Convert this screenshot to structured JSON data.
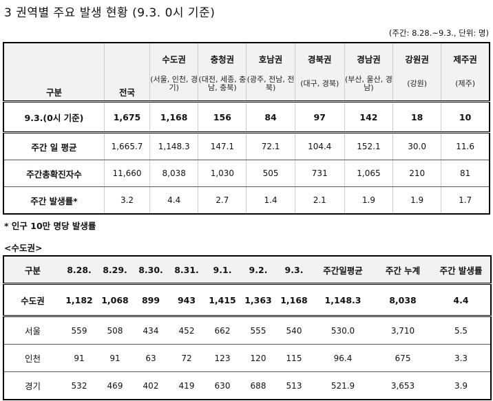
{
  "title": "3 권역별 주요 발생 현황 (9.3. 0시 기준)",
  "unit_note": "(주간: 8.28.~9.3., 단위: 명)",
  "table1": {
    "corner": "구분",
    "national": "전국",
    "regions": [
      {
        "name": "수도권",
        "sub": "(서울, 인천, 경기)"
      },
      {
        "name": "충청권",
        "sub": "(대전, 세종, 충남, 충북)"
      },
      {
        "name": "호남권",
        "sub": "(광주, 전남, 전북)"
      },
      {
        "name": "경북권",
        "sub": "(대구, 경북)"
      },
      {
        "name": "경남권",
        "sub": "(부산, 울산, 경남)"
      },
      {
        "name": "강원권",
        "sub": "(강원)"
      },
      {
        "name": "제주권",
        "sub": "(제주)"
      }
    ],
    "rows": [
      {
        "label": "9.3.(0시 기준)",
        "values": [
          "1,675",
          "1,168",
          "156",
          "84",
          "97",
          "142",
          "18",
          "10"
        ]
      },
      {
        "label": "주간 일 평균",
        "values": [
          "1,665.7",
          "1,148.3",
          "147.1",
          "72.1",
          "104.4",
          "152.1",
          "30.0",
          "11.6"
        ]
      },
      {
        "label": "주간총확진자수",
        "values": [
          "11,660",
          "8,038",
          "1,030",
          "505",
          "731",
          "1,065",
          "210",
          "81"
        ]
      },
      {
        "label": "주간 발생률*",
        "values": [
          "3.2",
          "4.4",
          "2.7",
          "1.4",
          "2.1",
          "1.9",
          "1.9",
          "1.7"
        ]
      }
    ]
  },
  "footnote": "* 인구 10만 명당 발생률",
  "section_label": "<수도권>",
  "table2": {
    "headers": [
      "구분",
      "8.28.",
      "8.29.",
      "8.30.",
      "8.31.",
      "9.1.",
      "9.2.",
      "9.3.",
      "주간일평균",
      "주간 누계",
      "주간 발생률"
    ],
    "rows": [
      {
        "label": "수도권",
        "values": [
          "1,182",
          "1,068",
          "899",
          "943",
          "1,415",
          "1,363",
          "1,168",
          "1,148.3",
          "8,038",
          "4.4"
        ]
      },
      {
        "label": "서울",
        "values": [
          "559",
          "508",
          "434",
          "452",
          "662",
          "555",
          "540",
          "530.0",
          "3,710",
          "5.5"
        ]
      },
      {
        "label": "인천",
        "values": [
          "91",
          "91",
          "63",
          "72",
          "123",
          "120",
          "115",
          "96.4",
          "675",
          "3.3"
        ]
      },
      {
        "label": "경기",
        "values": [
          "532",
          "469",
          "402",
          "419",
          "630",
          "688",
          "513",
          "521.9",
          "3,653",
          "3.9"
        ]
      }
    ]
  }
}
